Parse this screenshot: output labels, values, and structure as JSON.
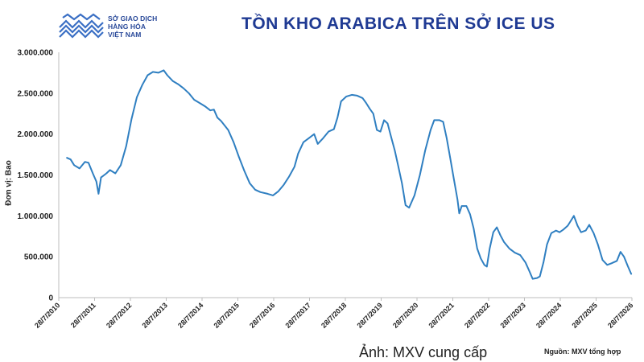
{
  "header": {
    "logo_lines": [
      "SỞ GIAO DỊCH",
      "HÀNG HÓA",
      "VIỆT NAM"
    ],
    "title": "TỒN KHO ARABICA TRÊN SỞ ICE US"
  },
  "footer": {
    "caption": "Ảnh: MXV cung cấp",
    "source": "Nguồn: MXV tổng hợp"
  },
  "colors": {
    "line": "#2f7fc1",
    "title": "#1f3a93",
    "logo": "#2a4a9a"
  },
  "chart_data": {
    "type": "line",
    "ylabel": "Đơn vị: Bao",
    "ylim": [
      0,
      3000000
    ],
    "yticks": [
      0,
      500000,
      1000000,
      1500000,
      2000000,
      2500000,
      3000000
    ],
    "ytick_labels": [
      "0",
      "500.000",
      "1.000.000",
      "1.500.000",
      "2.000.000",
      "2.500.000",
      "3.000.000"
    ],
    "xlim": [
      2010.57,
      2026.57
    ],
    "xtick_labels": [
      "28/7/2010",
      "28/7/2011",
      "28/7/2012",
      "28/7/2013",
      "28/7/2014",
      "28/7/2015",
      "28/7/2016",
      "28/7/2017",
      "28/7/2018",
      "28/7/2019",
      "28/7/2020",
      "28/7/2021",
      "28/7/2022",
      "28/7/2023",
      "28/7/2024",
      "28/7/2025",
      "28/7/2026"
    ],
    "grid": false,
    "series": [
      {
        "points": [
          [
            2010.8,
            1710000
          ],
          [
            2010.9,
            1690000
          ],
          [
            2011.0,
            1620000
          ],
          [
            2011.15,
            1580000
          ],
          [
            2011.3,
            1660000
          ],
          [
            2011.4,
            1650000
          ],
          [
            2011.52,
            1520000
          ],
          [
            2011.62,
            1420000
          ],
          [
            2011.68,
            1270000
          ],
          [
            2011.75,
            1470000
          ],
          [
            2011.9,
            1520000
          ],
          [
            2012.0,
            1560000
          ],
          [
            2012.15,
            1520000
          ],
          [
            2012.3,
            1620000
          ],
          [
            2012.45,
            1850000
          ],
          [
            2012.6,
            2180000
          ],
          [
            2012.75,
            2450000
          ],
          [
            2012.9,
            2600000
          ],
          [
            2013.05,
            2720000
          ],
          [
            2013.2,
            2760000
          ],
          [
            2013.35,
            2750000
          ],
          [
            2013.5,
            2780000
          ],
          [
            2013.6,
            2720000
          ],
          [
            2013.75,
            2650000
          ],
          [
            2013.9,
            2610000
          ],
          [
            2014.05,
            2560000
          ],
          [
            2014.2,
            2500000
          ],
          [
            2014.35,
            2420000
          ],
          [
            2014.5,
            2380000
          ],
          [
            2014.65,
            2340000
          ],
          [
            2014.8,
            2290000
          ],
          [
            2014.9,
            2300000
          ],
          [
            2015.0,
            2200000
          ],
          [
            2015.1,
            2160000
          ],
          [
            2015.3,
            2050000
          ],
          [
            2015.45,
            1900000
          ],
          [
            2015.6,
            1720000
          ],
          [
            2015.75,
            1550000
          ],
          [
            2015.9,
            1400000
          ],
          [
            2016.05,
            1320000
          ],
          [
            2016.2,
            1290000
          ],
          [
            2016.4,
            1270000
          ],
          [
            2016.55,
            1250000
          ],
          [
            2016.7,
            1300000
          ],
          [
            2016.85,
            1380000
          ],
          [
            2017.0,
            1480000
          ],
          [
            2017.15,
            1600000
          ],
          [
            2017.25,
            1760000
          ],
          [
            2017.4,
            1900000
          ],
          [
            2017.55,
            1950000
          ],
          [
            2017.7,
            2000000
          ],
          [
            2017.8,
            1880000
          ],
          [
            2017.95,
            1950000
          ],
          [
            2018.1,
            2030000
          ],
          [
            2018.25,
            2060000
          ],
          [
            2018.35,
            2200000
          ],
          [
            2018.45,
            2400000
          ],
          [
            2018.6,
            2460000
          ],
          [
            2018.75,
            2480000
          ],
          [
            2018.9,
            2470000
          ],
          [
            2019.05,
            2440000
          ],
          [
            2019.15,
            2380000
          ],
          [
            2019.25,
            2310000
          ],
          [
            2019.35,
            2250000
          ],
          [
            2019.45,
            2050000
          ],
          [
            2019.55,
            2030000
          ],
          [
            2019.65,
            2170000
          ],
          [
            2019.75,
            2130000
          ],
          [
            2019.85,
            1960000
          ],
          [
            2019.95,
            1800000
          ],
          [
            2020.05,
            1600000
          ],
          [
            2020.15,
            1400000
          ],
          [
            2020.25,
            1130000
          ],
          [
            2020.35,
            1100000
          ],
          [
            2020.5,
            1250000
          ],
          [
            2020.65,
            1500000
          ],
          [
            2020.8,
            1800000
          ],
          [
            2020.95,
            2050000
          ],
          [
            2021.05,
            2170000
          ],
          [
            2021.2,
            2170000
          ],
          [
            2021.3,
            2150000
          ],
          [
            2021.4,
            1950000
          ],
          [
            2021.5,
            1700000
          ],
          [
            2021.6,
            1450000
          ],
          [
            2021.7,
            1200000
          ],
          [
            2021.75,
            1030000
          ],
          [
            2021.82,
            1120000
          ],
          [
            2021.95,
            1120000
          ],
          [
            2022.05,
            1020000
          ],
          [
            2022.15,
            850000
          ],
          [
            2022.25,
            600000
          ],
          [
            2022.35,
            480000
          ],
          [
            2022.45,
            400000
          ],
          [
            2022.52,
            380000
          ],
          [
            2022.6,
            600000
          ],
          [
            2022.7,
            800000
          ],
          [
            2022.8,
            860000
          ],
          [
            2022.9,
            760000
          ],
          [
            2023.0,
            680000
          ],
          [
            2023.15,
            600000
          ],
          [
            2023.3,
            550000
          ],
          [
            2023.45,
            520000
          ],
          [
            2023.6,
            430000
          ],
          [
            2023.7,
            330000
          ],
          [
            2023.8,
            230000
          ],
          [
            2023.92,
            240000
          ],
          [
            2024.0,
            260000
          ],
          [
            2024.1,
            430000
          ],
          [
            2024.2,
            650000
          ],
          [
            2024.32,
            790000
          ],
          [
            2024.45,
            820000
          ],
          [
            2024.55,
            800000
          ],
          [
            2024.65,
            830000
          ],
          [
            2024.78,
            880000
          ],
          [
            2024.88,
            950000
          ],
          [
            2024.95,
            1000000
          ],
          [
            2025.05,
            880000
          ],
          [
            2025.15,
            800000
          ],
          [
            2025.28,
            820000
          ],
          [
            2025.38,
            890000
          ],
          [
            2025.5,
            790000
          ],
          [
            2025.62,
            650000
          ],
          [
            2025.75,
            460000
          ],
          [
            2025.88,
            400000
          ],
          [
            2026.0,
            420000
          ],
          [
            2026.15,
            450000
          ],
          [
            2026.25,
            560000
          ],
          [
            2026.35,
            500000
          ],
          [
            2026.45,
            390000
          ],
          [
            2026.55,
            290000
          ]
        ]
      }
    ]
  }
}
